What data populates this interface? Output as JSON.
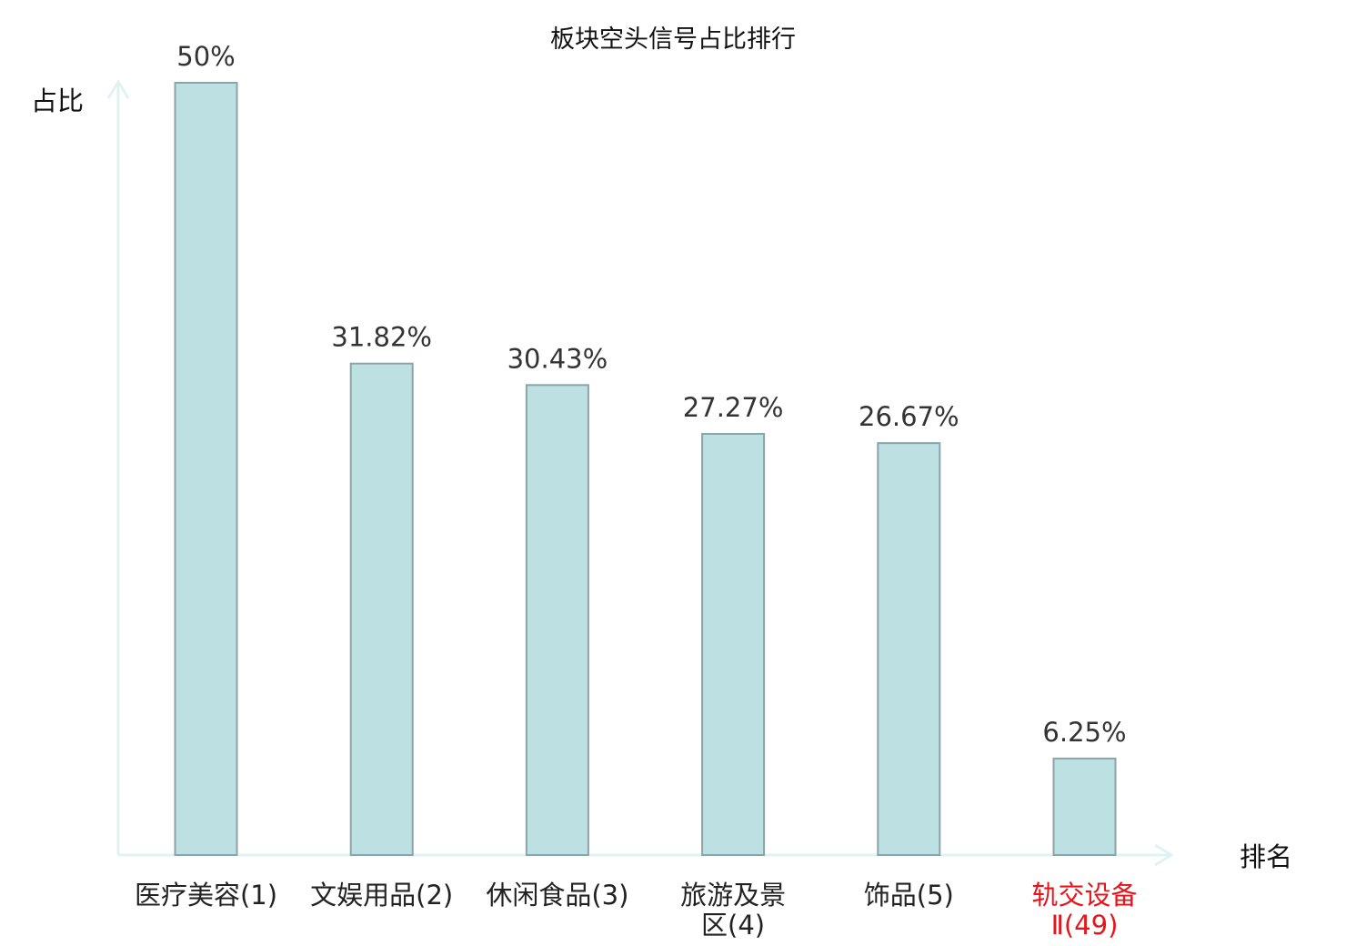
{
  "chart_data": {
    "type": "bar",
    "title": "板块空头信号占比排行",
    "ylabel": "占比",
    "xlabel": "排名",
    "ylim": [
      0,
      50
    ],
    "grid": false,
    "categories": [
      [
        "医疗美容(1)"
      ],
      [
        "文娱用品(2)"
      ],
      [
        "休闲食品(3)"
      ],
      [
        "旅游及景",
        "区(4)"
      ],
      [
        "饰品(5)"
      ],
      [
        "轨交设备",
        "Ⅱ(49)"
      ]
    ],
    "values": [
      50,
      31.82,
      30.43,
      27.27,
      26.67,
      6.25
    ],
    "value_labels": [
      "50%",
      "31.82%",
      "30.43%",
      "27.27%",
      "26.67%",
      "6.25%"
    ],
    "highlight_index": 5,
    "colors": {
      "bar_fill": "#bde0e3",
      "bar_stroke": "#8aa4a8",
      "axis": "#e0f3f1",
      "highlight_text": "#e8141b"
    }
  }
}
